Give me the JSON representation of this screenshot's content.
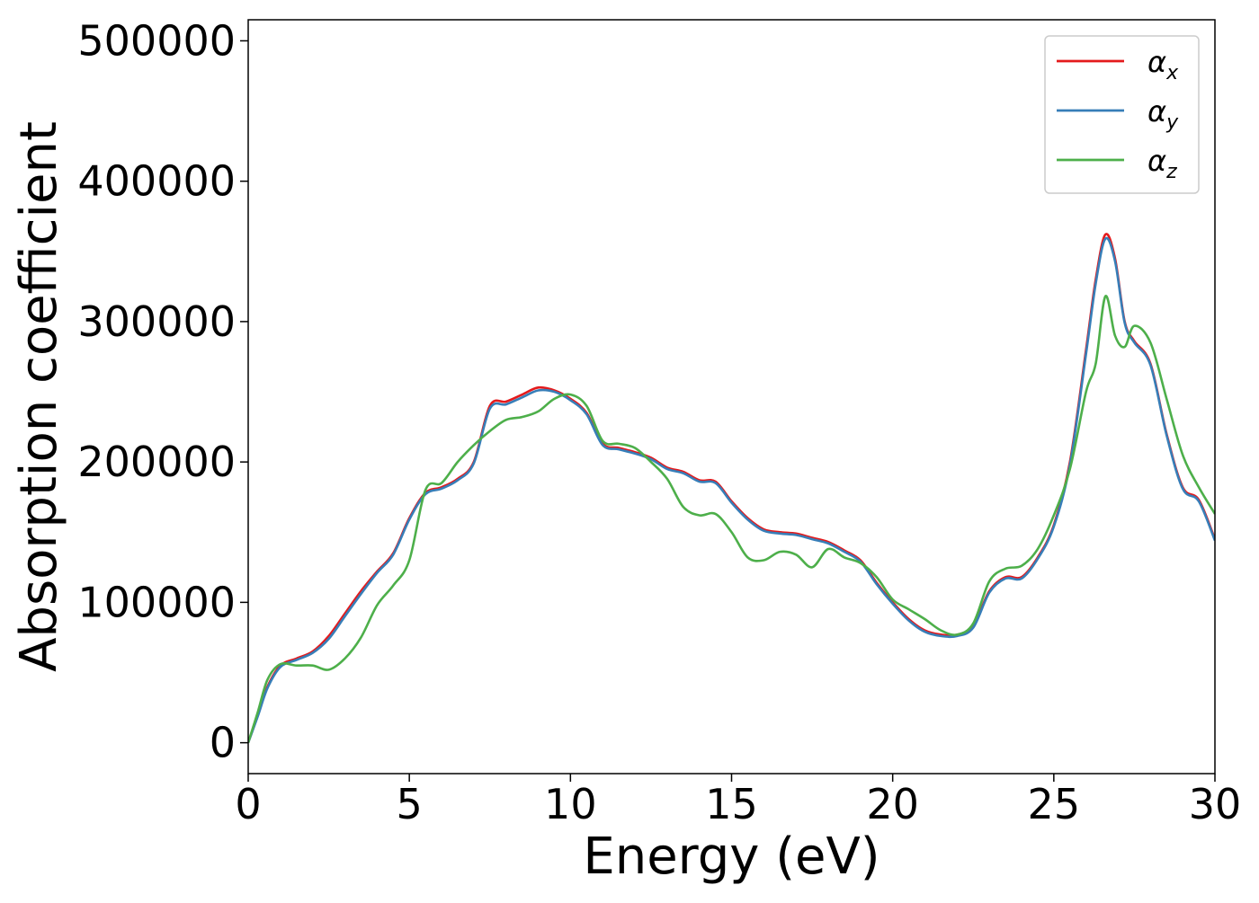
{
  "chart_data": {
    "type": "line",
    "title": "",
    "xlabel": "Energy (eV)",
    "ylabel": "Absorption coefficient",
    "xlim": [
      0,
      30
    ],
    "ylim": [
      -22000,
      515000
    ],
    "xticks": [
      0,
      5,
      10,
      15,
      20,
      25,
      30
    ],
    "xtick_labels": [
      "0",
      "5",
      "10",
      "15",
      "20",
      "25",
      "30"
    ],
    "yticks": [
      0,
      100000,
      200000,
      300000,
      400000,
      500000
    ],
    "ytick_labels": [
      "0",
      "100000",
      "200000",
      "300000",
      "400000",
      "500000"
    ],
    "grid": false,
    "legend_position": "top-right",
    "series": [
      {
        "name": "α_x",
        "label_base": "α",
        "label_sub": "x",
        "color": "#e41a1c",
        "x": [
          0,
          0.3,
          0.6,
          1,
          1.5,
          2,
          2.5,
          3,
          3.5,
          4,
          4.5,
          5,
          5.5,
          6,
          6.5,
          7,
          7.5,
          8,
          8.5,
          9,
          9.5,
          10,
          10.5,
          11,
          11.5,
          12,
          12.5,
          13,
          13.5,
          14,
          14.5,
          15,
          15.5,
          16,
          16.5,
          17,
          17.5,
          18,
          18.5,
          19,
          19.5,
          20,
          20.5,
          21,
          21.5,
          22,
          22.5,
          23,
          23.5,
          24,
          24.5,
          25,
          25.5,
          26,
          26.3,
          26.6,
          26.9,
          27.2,
          27.5,
          28,
          28.5,
          29,
          29.5,
          30
        ],
        "y": [
          0,
          20000,
          40000,
          55000,
          60000,
          65000,
          76000,
          92000,
          108000,
          122000,
          135000,
          160000,
          178000,
          182000,
          188000,
          200000,
          240000,
          243000,
          248000,
          253000,
          251000,
          245000,
          235000,
          213000,
          210000,
          207000,
          203000,
          196000,
          193000,
          187000,
          186000,
          172000,
          160000,
          152000,
          150000,
          149000,
          146000,
          143000,
          137000,
          130000,
          114000,
          100000,
          88000,
          80000,
          77000,
          77000,
          83000,
          108000,
          118000,
          118000,
          132000,
          155000,
          200000,
          280000,
          330000,
          362000,
          345000,
          300000,
          286000,
          270000,
          220000,
          182000,
          173000,
          145000
        ]
      },
      {
        "name": "α_y",
        "label_base": "α",
        "label_sub": "y",
        "color": "#377eb8",
        "x": [
          0,
          0.3,
          0.6,
          1,
          1.5,
          2,
          2.5,
          3,
          3.5,
          4,
          4.5,
          5,
          5.5,
          6,
          6.5,
          7,
          7.5,
          8,
          8.5,
          9,
          9.5,
          10,
          10.5,
          11,
          11.5,
          12,
          12.5,
          13,
          13.5,
          14,
          14.5,
          15,
          15.5,
          16,
          16.5,
          17,
          17.5,
          18,
          18.5,
          19,
          19.5,
          20,
          20.5,
          21,
          21.5,
          22,
          22.5,
          23,
          23.5,
          24,
          24.5,
          25,
          25.5,
          26,
          26.3,
          26.6,
          26.9,
          27.2,
          27.5,
          28,
          28.5,
          29,
          29.5,
          30
        ],
        "y": [
          0,
          19000,
          39000,
          54000,
          59000,
          64000,
          74000,
          90000,
          106000,
          121000,
          134000,
          159000,
          177000,
          181000,
          187000,
          199000,
          238000,
          241000,
          246000,
          251000,
          250000,
          244000,
          234000,
          212000,
          209000,
          206000,
          202000,
          195000,
          192000,
          186000,
          185000,
          171000,
          159000,
          151000,
          149000,
          148000,
          145000,
          142000,
          136000,
          129000,
          113000,
          99000,
          87000,
          79000,
          76000,
          76000,
          82000,
          107000,
          117000,
          117000,
          131000,
          154000,
          198000,
          277000,
          327000,
          359000,
          343000,
          299000,
          285000,
          269000,
          219000,
          181000,
          172000,
          144000
        ]
      },
      {
        "name": "α_z",
        "label_base": "α",
        "label_sub": "z",
        "color": "#4daf4a",
        "x": [
          0,
          0.3,
          0.6,
          1,
          1.5,
          2,
          2.5,
          3,
          3.5,
          4,
          4.5,
          5,
          5.5,
          6,
          6.5,
          7,
          7.5,
          8,
          8.5,
          9,
          9.5,
          10,
          10.5,
          11,
          11.5,
          12,
          12.5,
          13,
          13.5,
          14,
          14.5,
          15,
          15.5,
          16,
          16.5,
          17,
          17.5,
          18,
          18.5,
          19,
          19.5,
          20,
          20.5,
          21,
          21.5,
          22,
          22.5,
          23,
          23.5,
          24,
          24.5,
          25,
          25.5,
          26,
          26.3,
          26.6,
          26.9,
          27.2,
          27.5,
          28,
          28.5,
          29,
          29.5,
          30
        ],
        "y": [
          0,
          22000,
          45000,
          56000,
          55000,
          55000,
          52000,
          60000,
          75000,
          98000,
          112000,
          130000,
          180000,
          185000,
          200000,
          212000,
          222000,
          230000,
          232000,
          236000,
          245000,
          248000,
          240000,
          215000,
          213000,
          210000,
          200000,
          188000,
          168000,
          162000,
          163000,
          150000,
          132000,
          130000,
          136000,
          134000,
          125000,
          138000,
          132000,
          128000,
          118000,
          102000,
          95000,
          88000,
          80000,
          77000,
          85000,
          115000,
          124000,
          126000,
          138000,
          162000,
          195000,
          250000,
          270000,
          318000,
          290000,
          282000,
          297000,
          285000,
          245000,
          205000,
          182000,
          163000
        ]
      }
    ]
  }
}
